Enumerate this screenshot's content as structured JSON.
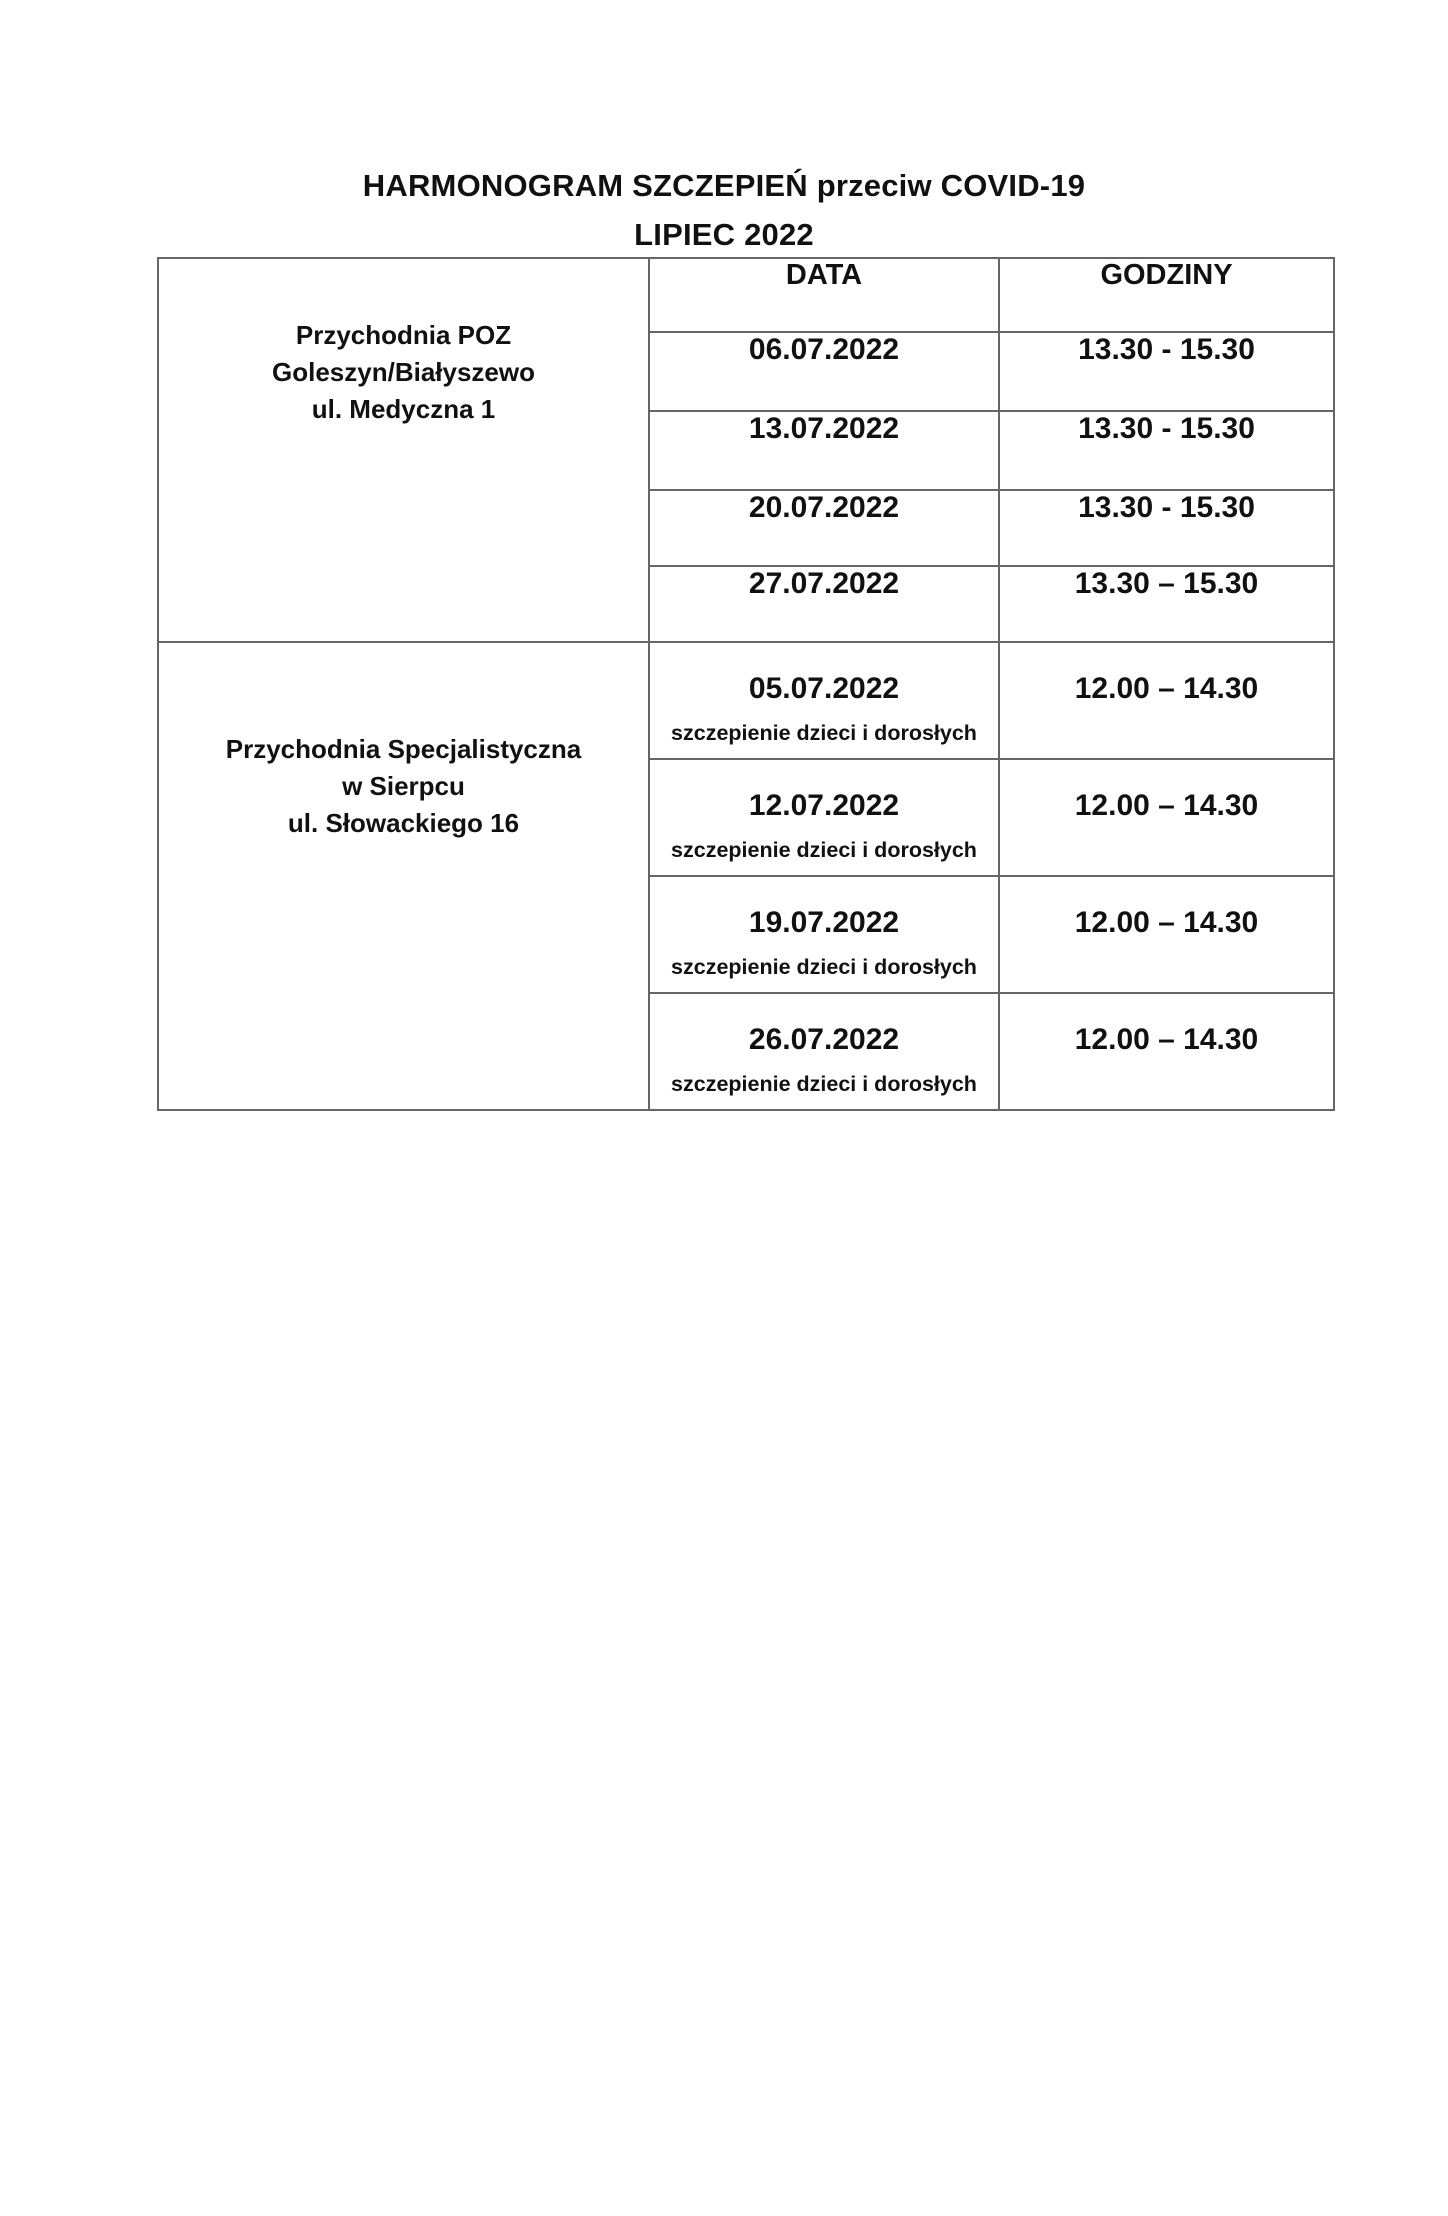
{
  "page": {
    "title": "HARMONOGRAM SZCZEPIEŃ przeciw COVID-19",
    "subtitle": "LIPIEC 2022"
  },
  "table": {
    "headers": {
      "date": "DATA",
      "hours": "GODZINY"
    },
    "sections": [
      {
        "location_lines": [
          "Przychodnia POZ",
          "Goleszyn/Białyszewo",
          "ul. Medyczna 1"
        ],
        "rows": [
          {
            "date": "06.07.2022",
            "time": "13.30 - 15.30"
          },
          {
            "date": "13.07.2022",
            "time": "13.30 - 15.30"
          },
          {
            "date": "20.07.2022",
            "time": "13.30 - 15.30"
          },
          {
            "date": "27.07.2022",
            "time": "13.30 – 15.30"
          }
        ]
      },
      {
        "location_lines": [
          "Przychodnia Specjalistyczna",
          "w Sierpcu",
          "ul. Słowackiego 16"
        ],
        "rows": [
          {
            "date": "05.07.2022",
            "note": "szczepienie dzieci i dorosłych",
            "time": "12.00 – 14.30"
          },
          {
            "date": "12.07.2022",
            "note": "szczepienie dzieci i dorosłych",
            "time": "12.00 – 14.30"
          },
          {
            "date": "19.07.2022",
            "note": "szczepienie dzieci i dorosłych",
            "time": "12.00 – 14.30"
          },
          {
            "date": "26.07.2022",
            "note": "szczepienie dzieci i dorosłych",
            "time": "12.00 – 14.30"
          }
        ]
      }
    ]
  },
  "colors": {
    "border": "#666666",
    "text": "#111111",
    "background": "#ffffff"
  }
}
